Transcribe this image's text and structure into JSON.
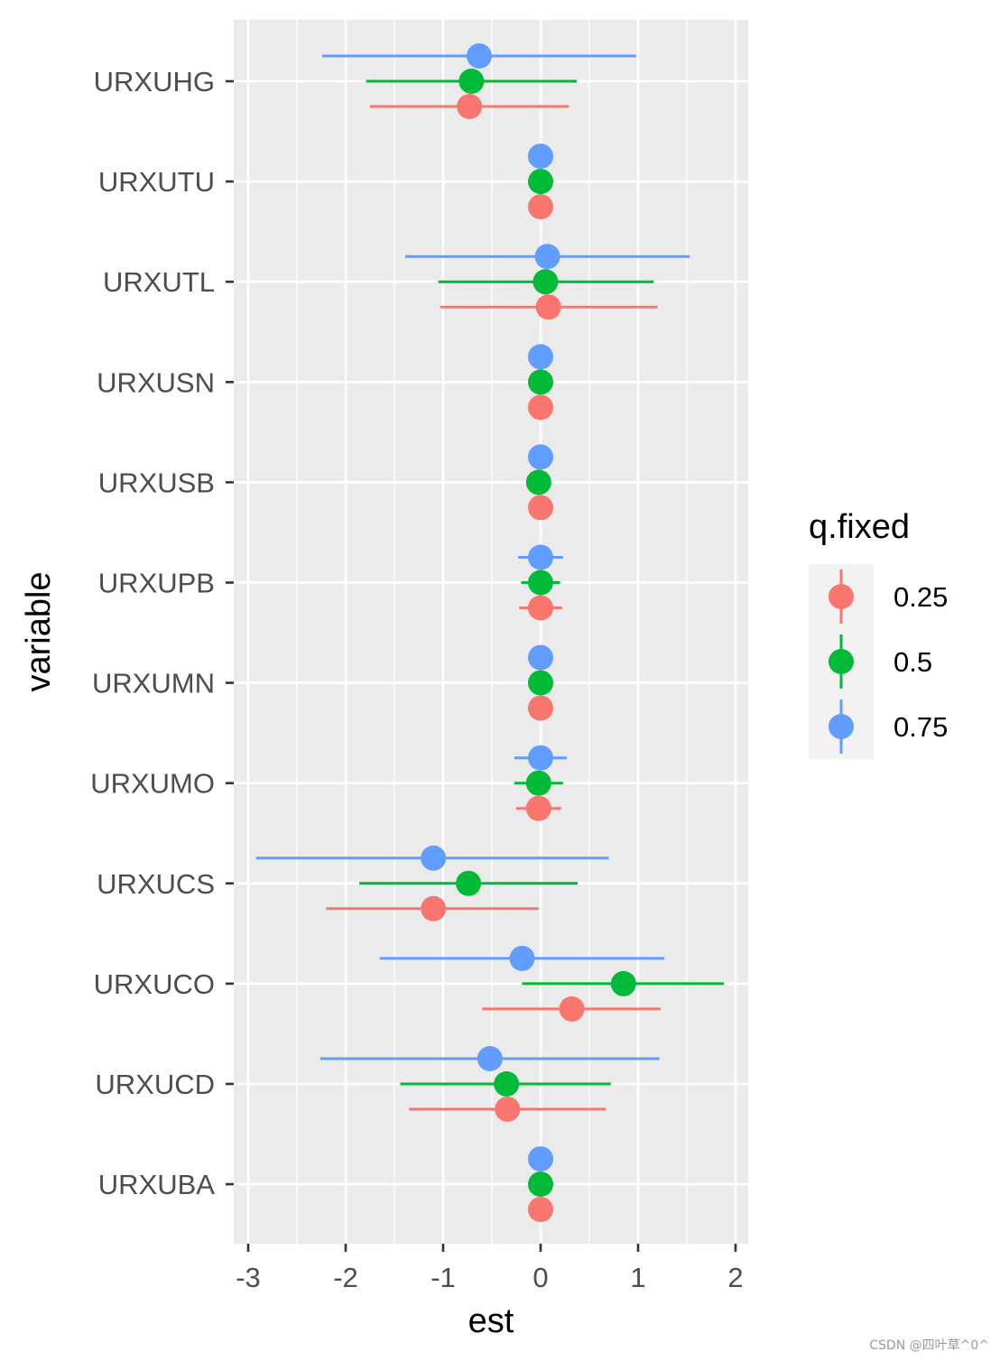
{
  "chart_data": {
    "type": "scatter",
    "subtype": "dot-and-whisker",
    "xlabel": "est",
    "ylabel": "variable",
    "xlim": [
      -3.15,
      2.1
    ],
    "xticks": [
      -3,
      -2,
      -1,
      0,
      1,
      2
    ],
    "xtick_labels": [
      "-3",
      "-2",
      "-1",
      "0",
      "1",
      "2"
    ],
    "grid": true,
    "legend": {
      "title": "q.fixed",
      "position": "right"
    },
    "categories": [
      "URXUHG",
      "URXUTU",
      "URXUTL",
      "URXUSN",
      "URXUSB",
      "URXUPB",
      "URXUMN",
      "URXUMO",
      "URXUCS",
      "URXUCO",
      "URXUCD",
      "URXUBA"
    ],
    "series": [
      {
        "name": "0.25",
        "color": "#F8766D",
        "est": [
          -0.73,
          0.0,
          0.08,
          0.0,
          0.0,
          0.0,
          0.0,
          -0.02,
          -1.1,
          0.32,
          -0.34,
          0.0
        ],
        "lower": [
          -1.75,
          null,
          -1.03,
          null,
          null,
          -0.22,
          null,
          -0.25,
          -2.2,
          -0.6,
          -1.35,
          null
        ],
        "upper": [
          0.29,
          null,
          1.2,
          null,
          null,
          0.22,
          null,
          0.21,
          -0.02,
          1.23,
          0.67,
          null
        ]
      },
      {
        "name": "0.5",
        "color": "#00BA38",
        "est": [
          -0.71,
          0.0,
          0.05,
          0.0,
          -0.02,
          0.0,
          0.0,
          -0.02,
          -0.74,
          0.85,
          -0.35,
          0.0
        ],
        "lower": [
          -1.79,
          null,
          -1.05,
          null,
          -0.12,
          -0.2,
          null,
          -0.27,
          -1.86,
          -0.19,
          -1.44,
          null
        ],
        "upper": [
          0.37,
          null,
          1.16,
          null,
          0.08,
          0.2,
          null,
          0.23,
          0.38,
          1.88,
          0.72,
          null
        ]
      },
      {
        "name": "0.75",
        "color": "#619CFF",
        "est": [
          -0.63,
          0.0,
          0.07,
          0.0,
          0.0,
          0.0,
          0.0,
          0.0,
          -1.1,
          -0.19,
          -0.52,
          0.0
        ],
        "lower": [
          -2.24,
          null,
          -1.39,
          null,
          -0.13,
          -0.23,
          null,
          -0.27,
          -2.92,
          -1.65,
          -2.26,
          null
        ],
        "upper": [
          0.98,
          null,
          1.53,
          null,
          0.13,
          0.23,
          null,
          0.27,
          0.7,
          1.27,
          1.22,
          null
        ]
      }
    ]
  },
  "watermark": "CSDN @四叶草^0^"
}
